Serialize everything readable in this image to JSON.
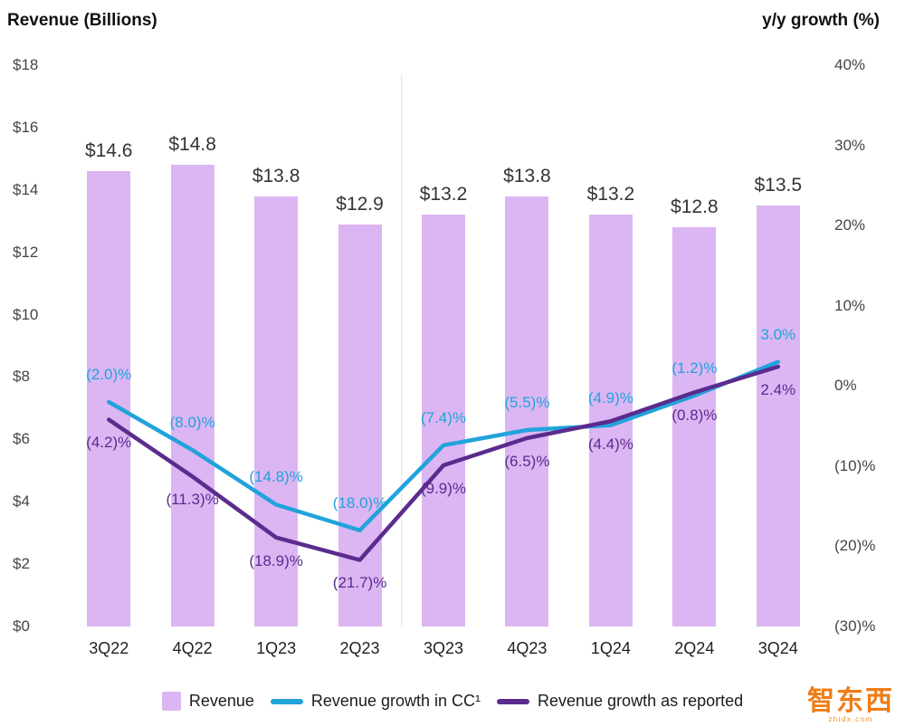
{
  "chart_data": {
    "type": "combo",
    "categories": [
      "3Q22",
      "4Q22",
      "1Q23",
      "2Q23",
      "3Q23",
      "4Q23",
      "1Q24",
      "2Q24",
      "3Q24"
    ],
    "bar_series": {
      "name": "Revenue",
      "axis": "left",
      "color": "#DBB6F3",
      "values": [
        14.6,
        14.8,
        13.8,
        12.9,
        13.2,
        13.8,
        13.2,
        12.8,
        13.5
      ],
      "labels": [
        "$14.6",
        "$14.8",
        "$13.8",
        "$12.9",
        "$13.2",
        "$13.8",
        "$13.2",
        "$12.8",
        "$13.5"
      ]
    },
    "line_series": [
      {
        "name": "Revenue growth in CC¹",
        "axis": "right",
        "color": "#21A3DB",
        "label_position": "above",
        "values": [
          -2.0,
          -8.0,
          -14.8,
          -18.0,
          -7.4,
          -5.5,
          -4.9,
          -1.2,
          3.0
        ],
        "labels": [
          "(2.0)%",
          "(8.0)%",
          "(14.8)%",
          "(18.0)%",
          "(7.4)%",
          "(5.5)%",
          "(4.9)%",
          "(1.2)%",
          "3.0%"
        ]
      },
      {
        "name": "Revenue growth as reported",
        "axis": "right",
        "color": "#5B2B8E",
        "label_position": "below",
        "values": [
          -4.2,
          -11.3,
          -18.9,
          -21.7,
          -9.9,
          -6.5,
          -4.4,
          -0.8,
          2.4
        ],
        "labels": [
          "(4.2)%",
          "(11.3)%",
          "(18.9)%",
          "(21.7)%",
          "(9.9)%",
          "(6.5)%",
          "(4.4)%",
          "(0.8)%",
          "2.4%"
        ]
      }
    ],
    "left_axis": {
      "title": "Revenue (Billions)",
      "min": 0,
      "max": 18,
      "tick_values": [
        18,
        16,
        14,
        12,
        10,
        8,
        6,
        4,
        2,
        0
      ],
      "ticks": [
        "$18",
        "$16",
        "$14",
        "$12",
        "$10",
        "$8",
        "$6",
        "$4",
        "$2",
        "$0"
      ]
    },
    "right_axis": {
      "title": "y/y growth (%)",
      "min": -30,
      "max": 40,
      "tick_values": [
        40,
        30,
        20,
        10,
        0,
        -10,
        -20,
        -30
      ],
      "ticks": [
        "40%",
        "30%",
        "20%",
        "10%",
        "0%",
        "(10)%",
        "(20)%",
        "(30)%"
      ]
    },
    "year_divider_after_index": 3,
    "grid": false,
    "legend_position": "bottom"
  },
  "watermark": {
    "text": "智东西",
    "subtext": "zhidx.com"
  }
}
